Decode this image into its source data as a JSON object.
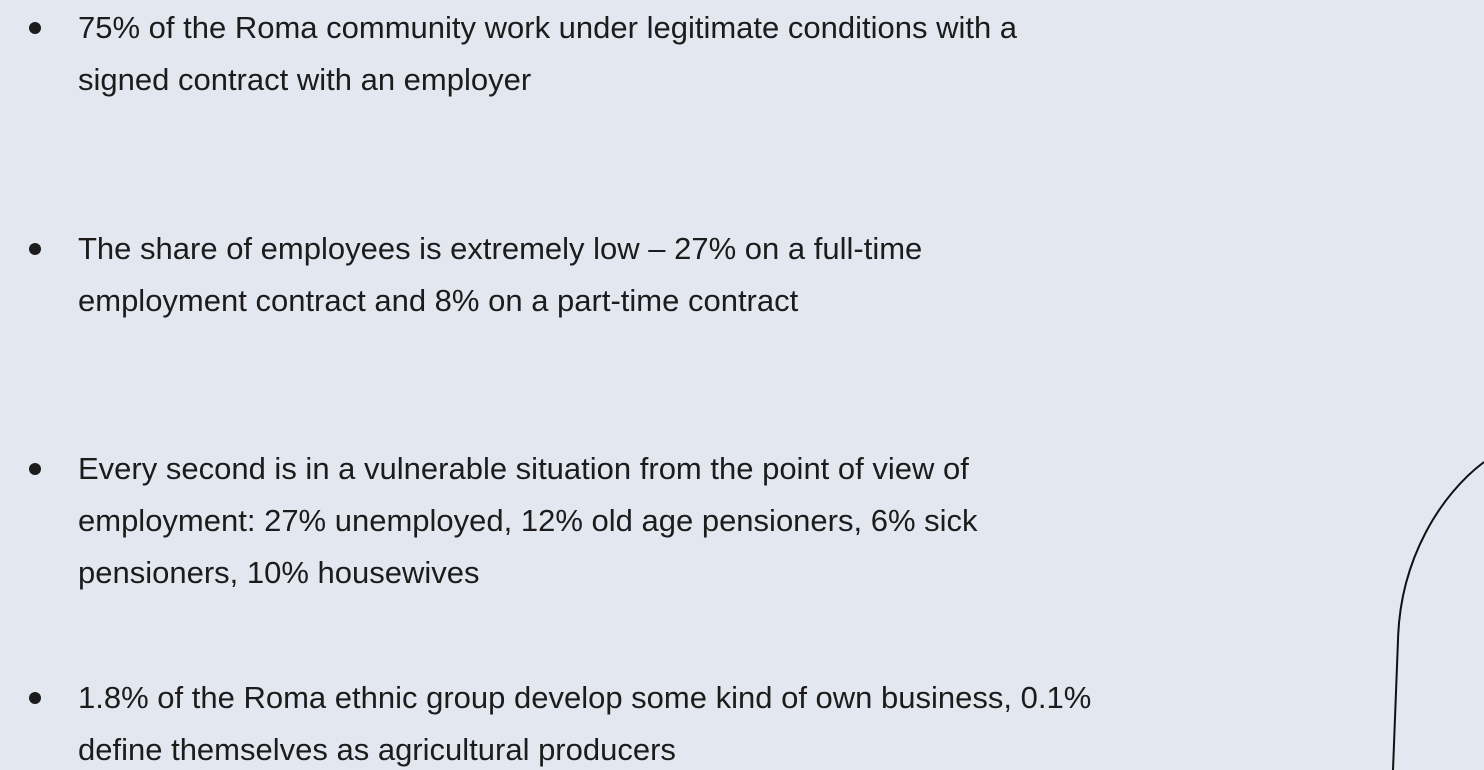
{
  "bullets": [
    {
      "lines": [
        "75% of the Roma community work under legitimate conditions with a",
        "signed contract with an employer"
      ]
    },
    {
      "lines": [
        "The share of employees is extremely low – 27% on a full-time",
        "employment contract and 8% on a part-time contract"
      ]
    },
    {
      "lines": [
        "Every second is in a vulnerable situation from the point of view of",
        "employment: 27% unemployed, 12% old age pensioners, 6% sick",
        "pensioners, 10% housewives"
      ]
    },
    {
      "lines": [
        "1.8% of the Roma ethnic group develop some kind of own business, 0.1%",
        "define themselves as agricultural producers"
      ]
    }
  ]
}
